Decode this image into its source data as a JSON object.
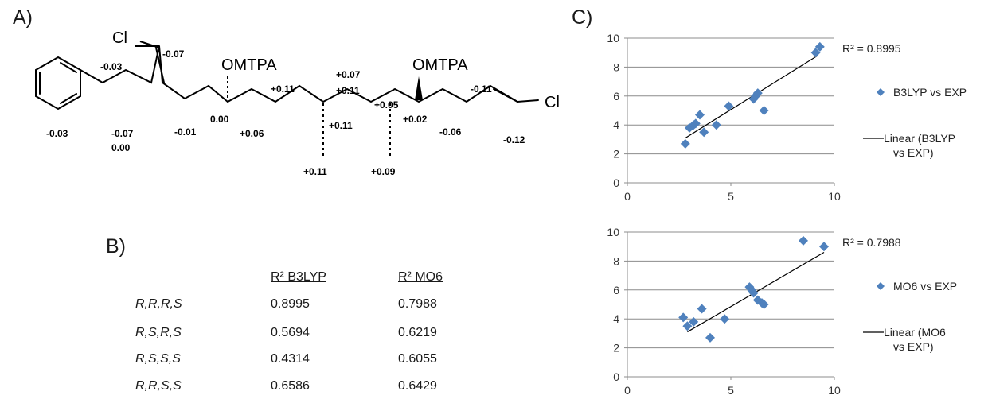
{
  "panels": {
    "a": "A)",
    "b": "B)",
    "c": "C)"
  },
  "molecule": {
    "labels": {
      "cl_top": "Cl",
      "cl_right": "Cl",
      "omtpa_left": "OMTPA",
      "omtpa_right": "OMTPA",
      "s_m003a": "-0.03",
      "s_m003b": "-0.03",
      "s_m007a": "-0.07",
      "s_m007b": "-0.07",
      "s_000a": "0.00",
      "s_000b": "0.00",
      "s_m001": "-0.01",
      "s_p006": "+0.06",
      "s_p011a": "+0.11",
      "s_p011b": "+0.11",
      "s_p011c": "+0.11",
      "s_p011d": "+0.11",
      "s_p007": "+0.07",
      "s_p005": "+0.05",
      "s_p002": "+0.02",
      "s_p009": "+0.09",
      "s_m006": "-0.06",
      "s_m011": "-0.11",
      "s_m012": "-0.12"
    }
  },
  "table": {
    "headers": [
      "R² B3LYP",
      "R² MO6"
    ],
    "rows": [
      {
        "config": "R,R,R,S",
        "b3lyp": "0.8995",
        "mo6": "0.7988"
      },
      {
        "config": "R,S,R,S",
        "b3lyp": "0.5694",
        "mo6": "0.6219"
      },
      {
        "config": "R,S,S,S",
        "b3lyp": "0.4314",
        "mo6": "0.6055"
      },
      {
        "config": "R,R,S,S",
        "b3lyp": "0.6586",
        "mo6": "0.6429"
      }
    ]
  },
  "chart_data": [
    {
      "type": "scatter",
      "xlim": [
        0,
        10
      ],
      "ylim": [
        0,
        10
      ],
      "xticks": [
        0,
        5,
        10
      ],
      "yticks": [
        0,
        2,
        4,
        6,
        8,
        10
      ],
      "grid": "horizontal",
      "legend_position": "right",
      "series": [
        {
          "name": "B3LYP vs EXP",
          "color": "#4f81bd",
          "marker": "diamond",
          "x": [
            2.8,
            3.0,
            3.2,
            3.3,
            3.5,
            3.7,
            4.3,
            4.9,
            6.1,
            6.2,
            6.3,
            6.6,
            9.1,
            9.3
          ],
          "y": [
            2.7,
            3.8,
            4.0,
            4.1,
            4.7,
            3.5,
            4.0,
            5.3,
            5.8,
            6.0,
            6.2,
            5.0,
            9.0,
            9.4
          ]
        }
      ],
      "trendline": {
        "name": "Linear (B3LYP vs EXP)",
        "from": [
          2.8,
          3.1
        ],
        "to": [
          9.2,
          8.8
        ],
        "color": "#000000"
      },
      "annotation": "R² = 0.8995"
    },
    {
      "type": "scatter",
      "xlim": [
        0,
        10
      ],
      "ylim": [
        0,
        10
      ],
      "xticks": [
        0,
        5,
        10
      ],
      "yticks": [
        0,
        2,
        4,
        6,
        8,
        10
      ],
      "grid": "horizontal",
      "legend_position": "right",
      "series": [
        {
          "name": "MO6 vs EXP",
          "color": "#4f81bd",
          "marker": "diamond",
          "x": [
            2.7,
            2.9,
            3.2,
            3.6,
            4.0,
            4.7,
            5.9,
            6.0,
            6.1,
            6.3,
            6.5,
            6.6,
            8.5,
            9.5
          ],
          "y": [
            4.1,
            3.5,
            3.8,
            4.7,
            2.7,
            4.0,
            6.2,
            6.0,
            5.8,
            5.3,
            5.1,
            5.0,
            9.4,
            9.0
          ]
        }
      ],
      "trendline": {
        "name": "Linear (MO6 vs EXP)",
        "from": [
          2.9,
          3.1
        ],
        "to": [
          9.5,
          8.6
        ],
        "color": "#000000"
      },
      "annotation": "R² = 0.7988"
    }
  ]
}
